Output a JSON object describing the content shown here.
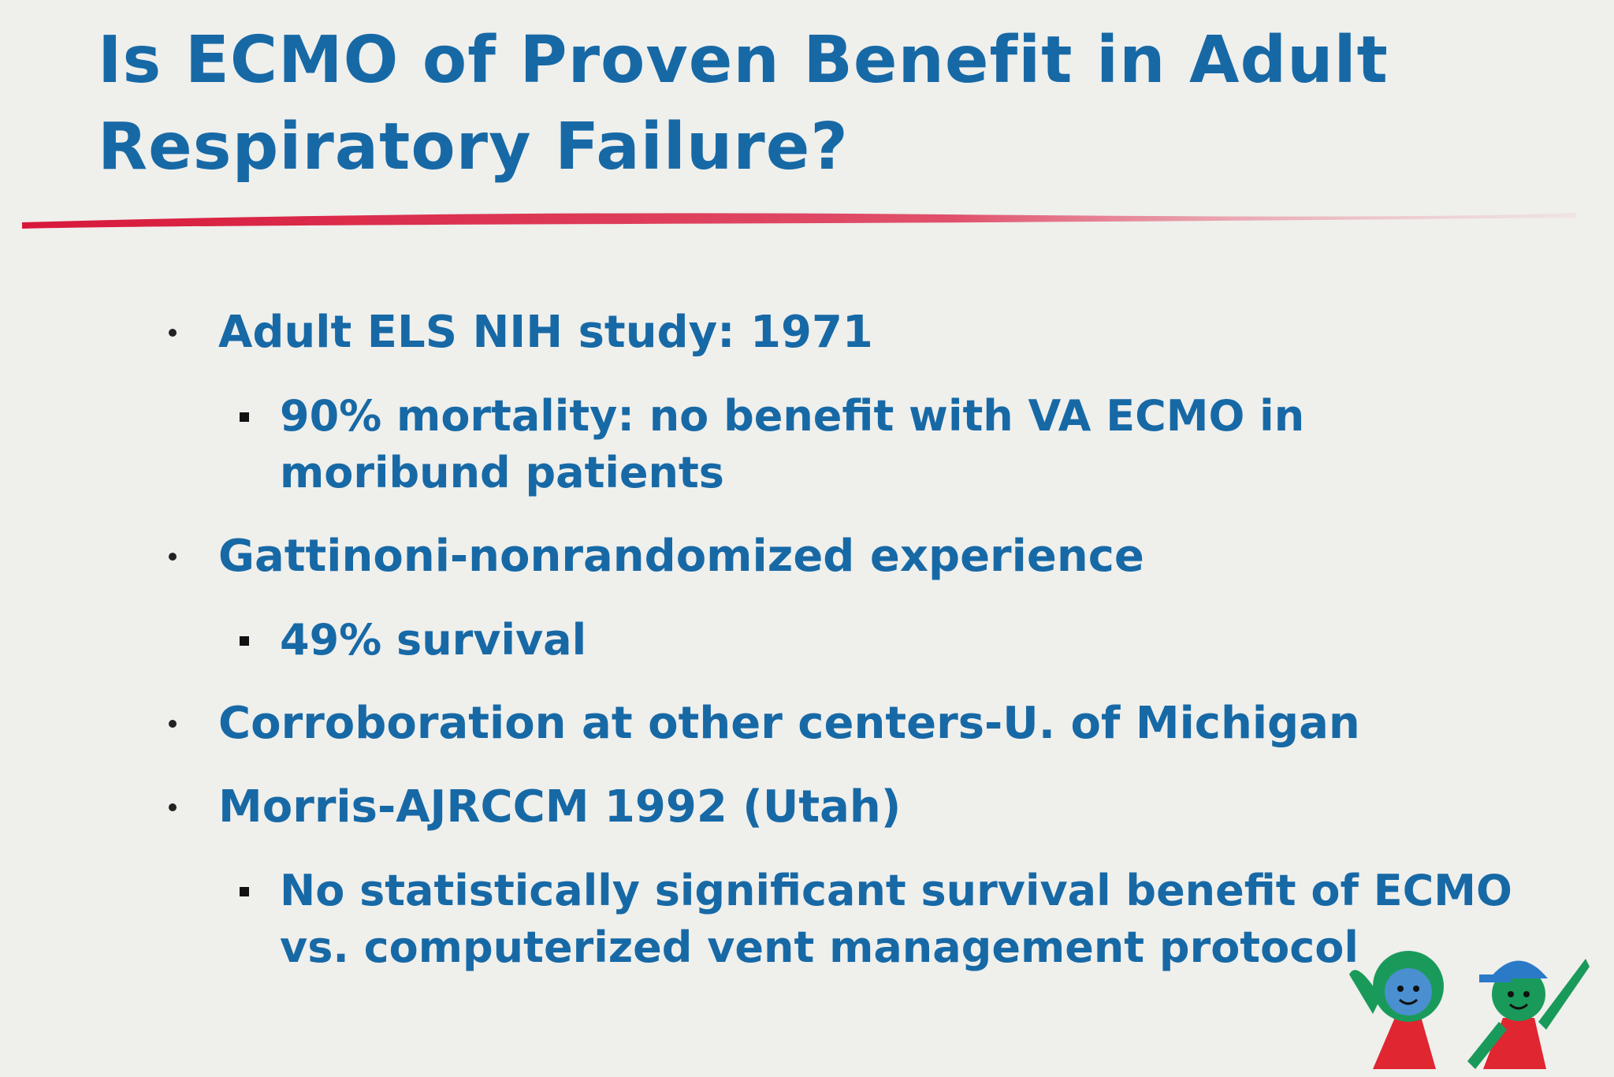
{
  "title": {
    "lines": [
      "Is ECMO of Proven Benefit in Adult",
      "Respiratory Failure?"
    ]
  },
  "bullets": [
    {
      "text": "Adult ELS NIH study: 1971",
      "sub": [
        {
          "lines": [
            "90% mortality: no benefit with VA ECMO in",
            "moribund patients"
          ]
        }
      ]
    },
    {
      "text": "Gattinoni-nonrandomized experience",
      "sub": [
        {
          "lines": [
            "49% survival"
          ]
        }
      ]
    },
    {
      "text": "Corroboration at other centers-U. of Michigan",
      "sub": []
    },
    {
      "text": "Morris-AJRCCM 1992 (Utah)",
      "sub": [
        {
          "lines": [
            "No statistically significant survival benefit of ECMO",
            "vs. computerized vent management protocol"
          ]
        }
      ]
    }
  ]
}
